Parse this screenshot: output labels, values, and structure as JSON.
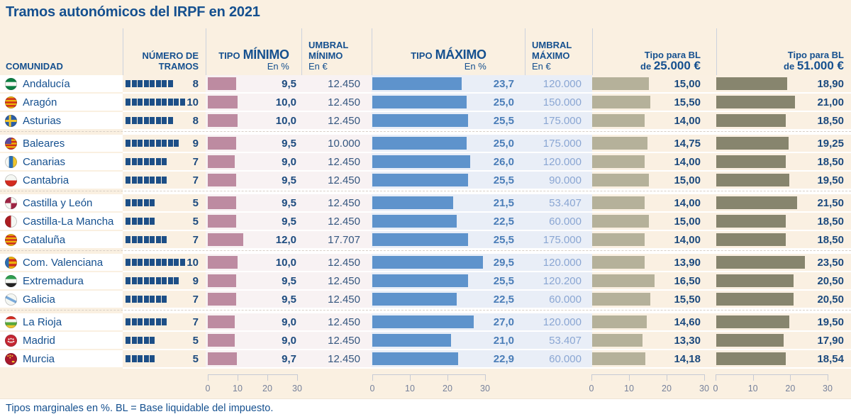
{
  "title": "Tramos autonómicos del IRPF en 2021",
  "footer": "Tipos marginales en %. BL = Base liquidable del impuesto.",
  "colors": {
    "accent_title": "#15508f",
    "bar_tipo_minimo": "#bd8ba1",
    "bar_tipo_maximo": "#5e93cc",
    "bar_bl_25000": "#b5b19a",
    "bar_bl_51000": "#87856e",
    "tramo_square": "#1d4f87",
    "value_dark": "#1c4a7e",
    "value_steel_blue": "#4a7db8",
    "value_light_blue": "#8aa6d3",
    "bg_cream": "#faf0e1",
    "bg_pink_section": "#f8f2f3",
    "bg_blue_section": "#e9eef7"
  },
  "header": {
    "comunidad": "COMUNIDAD",
    "tramos_l1": "NÚMERO DE",
    "tramos_l2": "TRAMOS",
    "tipo_min_small": "TIPO",
    "tipo_min_big": "MÍNIMO",
    "tipo_min_unit": "En %",
    "umbral_min_l1": "UMBRAL",
    "umbral_min_l2": "MÍNIMO",
    "umbral_min_unit": "En €",
    "tipo_max_small": "TIPO",
    "tipo_max_big": "MÁXIMO",
    "tipo_max_unit": "En %",
    "umbral_max_l1": "UMBRAL",
    "umbral_max_l2": "MÁXIMO",
    "umbral_max_unit": "En €",
    "bl25_l1": "Tipo para BL",
    "bl25_pre": "de ",
    "bl25_big": "25.000 €",
    "bl51_l1": "Tipo para BL",
    "bl51_pre": "de ",
    "bl51_big": "51.000 €"
  },
  "axes": {
    "ticks": [
      "0",
      "10",
      "20",
      "30"
    ]
  },
  "rows": [
    {
      "name": "Andalucía",
      "flag": {
        "kind": "h",
        "c": [
          "#0b7f41",
          "#f5f7f3",
          "#0b7f41"
        ]
      },
      "tramos": 8,
      "tmin": "9,5",
      "umin": "12.450",
      "tmax": "23,7",
      "umax": "120.000",
      "b25": "15,00",
      "b51": "18,90"
    },
    {
      "name": "Aragón",
      "flag": {
        "kind": "h",
        "c": [
          "#edb30a",
          "#cf2b1d",
          "#edb30a",
          "#cf2b1d",
          "#edb30a",
          "#cf2b1d",
          "#edb30a"
        ]
      },
      "tramos": 10,
      "tmin": "10,0",
      "umin": "12.450",
      "tmax": "25,0",
      "umax": "150.000",
      "b25": "15,50",
      "b51": "21,00"
    },
    {
      "name": "Asturias",
      "flag": {
        "kind": "cross",
        "bg": "#2b5ea7",
        "fg": "#efc52c"
      },
      "tramos": 8,
      "tmin": "10,0",
      "umin": "12.450",
      "tmax": "25,5",
      "umax": "175.000",
      "b25": "14,00",
      "b51": "18,50"
    },
    {
      "name": "Baleares",
      "flag": {
        "kind": "canton",
        "c": [
          "#cf2b1d",
          "#edb30a",
          "#cf2b1d",
          "#edb30a",
          "#cf2b1d",
          "#edb30a",
          "#cf2b1d"
        ],
        "canton": "#5c4a9b"
      },
      "tramos": 9,
      "tmin": "9,5",
      "umin": "10.000",
      "tmax": "25,0",
      "umax": "175.000",
      "b25": "14,75",
      "b51": "19,25"
    },
    {
      "name": "Canarias",
      "flag": {
        "kind": "v",
        "c": [
          "#f5f7f3",
          "#2b6fb4",
          "#efc52c"
        ]
      },
      "tramos": 7,
      "tmin": "9,0",
      "umin": "12.450",
      "tmax": "26,0",
      "umax": "120.000",
      "b25": "14,00",
      "b51": "18,50"
    },
    {
      "name": "Cantabria",
      "flag": {
        "kind": "h",
        "c": [
          "#f5f7f3",
          "#d42a1e"
        ]
      },
      "tramos": 7,
      "tmin": "9,5",
      "umin": "12.450",
      "tmax": "25,5",
      "umax": "90.000",
      "b25": "15,00",
      "b51": "19,50"
    },
    {
      "name": "Castilla y León",
      "flag": {
        "kind": "quarter",
        "c": [
          "#9e2444",
          "#f5f7f3",
          "#f5f7f3",
          "#9e2444"
        ]
      },
      "tramos": 5,
      "tmin": "9,5",
      "umin": "12.450",
      "tmax": "21,5",
      "umax": "53.407",
      "b25": "14,00",
      "b51": "21,50"
    },
    {
      "name": "Castilla-La Mancha",
      "flag": {
        "kind": "v",
        "c": [
          "#ad1c21",
          "#f5f7f3"
        ]
      },
      "tramos": 5,
      "tmin": "9,5",
      "umin": "12.450",
      "tmax": "22,5",
      "umax": "60.000",
      "b25": "15,00",
      "b51": "18,50"
    },
    {
      "name": "Cataluña",
      "flag": {
        "kind": "h",
        "c": [
          "#edb30a",
          "#cf2b1d",
          "#edb30a",
          "#cf2b1d",
          "#edb30a",
          "#cf2b1d",
          "#edb30a"
        ]
      },
      "tramos": 7,
      "tmin": "12,0",
      "umin": "17.707",
      "tmax": "25,5",
      "umax": "175.000",
      "b25": "14,00",
      "b51": "18,50"
    },
    {
      "name": "Com. Valenciana",
      "flag": {
        "kind": "band",
        "band": "#2b6fb4",
        "c": [
          "#edb30a",
          "#cf2b1d",
          "#edb30a",
          "#cf2b1d",
          "#edb30a"
        ]
      },
      "tramos": 10,
      "tmin": "10,0",
      "umin": "12.450",
      "tmax": "29,5",
      "umax": "120.000",
      "b25": "13,90",
      "b51": "23,50"
    },
    {
      "name": "Extremadura",
      "flag": {
        "kind": "h",
        "c": [
          "#2f9e4f",
          "#f5f7f3",
          "#222222"
        ]
      },
      "tramos": 9,
      "tmin": "9,5",
      "umin": "12.450",
      "tmax": "25,5",
      "umax": "120.200",
      "b25": "16,50",
      "b51": "20,50"
    },
    {
      "name": "Galicia",
      "flag": {
        "kind": "diag",
        "bg": "#f5f7f3",
        "fg": "#79a9d9"
      },
      "tramos": 7,
      "tmin": "9,5",
      "umin": "12.450",
      "tmax": "22,5",
      "umax": "60.000",
      "b25": "15,50",
      "b51": "20,50"
    },
    {
      "name": "La Rioja",
      "flag": {
        "kind": "h",
        "c": [
          "#d42a1e",
          "#f5f7f3",
          "#57a73c",
          "#efc52c"
        ]
      },
      "tramos": 7,
      "tmin": "9,0",
      "umin": "12.450",
      "tmax": "27,0",
      "umax": "120.000",
      "b25": "14,60",
      "b51": "19,50"
    },
    {
      "name": "Madrid",
      "flag": {
        "kind": "dots",
        "bg": "#c52531",
        "fg": "#f5f7f3"
      },
      "tramos": 5,
      "tmin": "9,0",
      "umin": "12.450",
      "tmax": "21,0",
      "umax": "53.407",
      "b25": "13,30",
      "b51": "17,90"
    },
    {
      "name": "Murcia",
      "flag": {
        "kind": "emblem",
        "bg": "#a8172c",
        "fg": "#efc52c"
      },
      "tramos": 5,
      "tmin": "9,7",
      "umin": "12.450",
      "tmax": "22,9",
      "umax": "60.000",
      "b25": "14,18",
      "b51": "18,54"
    }
  ],
  "chart_data": {
    "type": "bar",
    "orientation": "horizontal",
    "title": "Tramos autonómicos del IRPF en 2021",
    "note": "Tipos marginales en %. BL = Base liquidable del impuesto.",
    "categories": [
      "Andalucía",
      "Aragón",
      "Asturias",
      "Baleares",
      "Canarias",
      "Cantabria",
      "Castilla y León",
      "Castilla-La Mancha",
      "Cataluña",
      "Com. Valenciana",
      "Extremadura",
      "Galicia",
      "La Rioja",
      "Madrid",
      "Murcia"
    ],
    "series": [
      {
        "name": "Número de tramos",
        "values": [
          8,
          10,
          8,
          9,
          7,
          7,
          5,
          5,
          7,
          10,
          9,
          7,
          7,
          5,
          5
        ]
      },
      {
        "name": "Tipo mínimo (En %)",
        "values": [
          9.5,
          10.0,
          10.0,
          9.5,
          9.0,
          9.5,
          9.5,
          9.5,
          12.0,
          10.0,
          9.5,
          9.5,
          9.0,
          9.0,
          9.7
        ]
      },
      {
        "name": "Umbral mínimo (En €)",
        "values": [
          12450,
          12450,
          12450,
          10000,
          12450,
          12450,
          12450,
          12450,
          17707,
          12450,
          12450,
          12450,
          12450,
          12450,
          12450
        ]
      },
      {
        "name": "Tipo máximo (En %)",
        "values": [
          23.7,
          25.0,
          25.5,
          25.0,
          26.0,
          25.5,
          21.5,
          22.5,
          25.5,
          29.5,
          25.5,
          22.5,
          27.0,
          21.0,
          22.9
        ]
      },
      {
        "name": "Umbral máximo (En €)",
        "values": [
          120000,
          150000,
          175000,
          175000,
          120000,
          90000,
          53407,
          60000,
          175000,
          120000,
          120200,
          60000,
          120000,
          53407,
          60000
        ]
      },
      {
        "name": "Tipo para BL de 25.000 €",
        "values": [
          15.0,
          15.5,
          14.0,
          14.75,
          14.0,
          15.0,
          14.0,
          15.0,
          14.0,
          13.9,
          16.5,
          15.5,
          14.6,
          13.3,
          14.18
        ]
      },
      {
        "name": "Tipo para BL de 51.000 €",
        "values": [
          18.9,
          21.0,
          18.5,
          19.25,
          18.5,
          19.5,
          21.5,
          18.5,
          18.5,
          23.5,
          20.5,
          20.5,
          19.5,
          17.9,
          18.54
        ]
      }
    ],
    "bar_axis_range": [
      0,
      30
    ],
    "bar_axis_ticks": [
      0,
      10,
      20,
      30
    ],
    "grid": false,
    "legend_position": "none"
  }
}
